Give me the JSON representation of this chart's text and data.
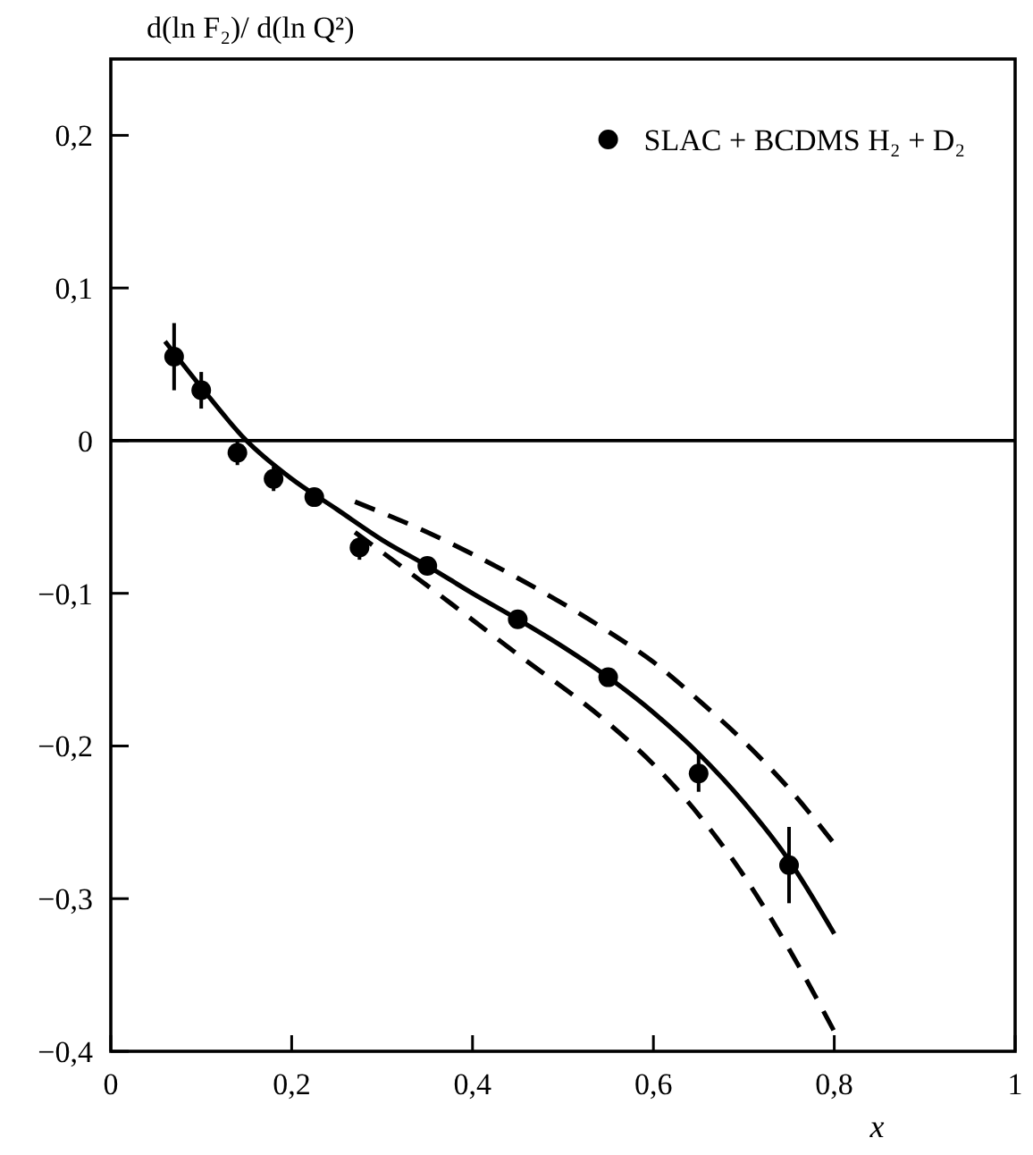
{
  "chart_data": {
    "type": "scatter",
    "ylabel": "d(ln F₂)/ d(ln Q²)",
    "xlabel": "x",
    "xlim": [
      0,
      1
    ],
    "ylim": [
      -0.4,
      0.25
    ],
    "xticks": [
      0,
      {
        "value": 0.2,
        "label": "0,2"
      },
      {
        "value": 0.4,
        "label": "0,4"
      },
      {
        "value": 0.6,
        "label": "0,6"
      },
      {
        "value": 0.8,
        "label": "0,8"
      },
      1
    ],
    "yticks": [
      {
        "value": -0.4,
        "label": "−0,4"
      },
      {
        "value": -0.3,
        "label": "−0,3"
      },
      {
        "value": -0.2,
        "label": "−0,2"
      },
      {
        "value": -0.1,
        "label": "−0,1"
      },
      0,
      {
        "value": 0.1,
        "label": "0,1"
      },
      {
        "value": 0.2,
        "label": "0,2"
      }
    ],
    "grid": false,
    "legend": "top right",
    "marker": "circle",
    "ref_lines": [
      {
        "axis": "y",
        "value": 0,
        "color": "#000000"
      }
    ],
    "series": [
      {
        "name": "SLAC + BCDMS H₂ + D₂",
        "color": "#000000",
        "x": [
          0.07,
          0.1,
          0.14,
          0.18,
          0.225,
          0.275,
          0.35,
          0.45,
          0.55,
          0.65,
          0.75
        ],
        "values": [
          0.055,
          0.033,
          -0.008,
          -0.025,
          -0.037,
          -0.07,
          -0.082,
          -0.117,
          -0.155,
          -0.218,
          -0.278
        ],
        "errors": [
          0.022,
          0.012,
          0.008,
          0.008,
          0.006,
          0.008,
          0.005,
          0.005,
          0.005,
          0.012,
          0.025
        ]
      },
      {
        "type": "line",
        "color": "#000000",
        "line_style": "solid",
        "marker": "none",
        "x": [
          0.06,
          0.1,
          0.15,
          0.2,
          0.25,
          0.3,
          0.35,
          0.4,
          0.45,
          0.5,
          0.55,
          0.6,
          0.65,
          0.7,
          0.75,
          0.8
        ],
        "values": [
          0.065,
          0.035,
          0,
          -0.025,
          -0.045,
          -0.065,
          -0.082,
          -0.1,
          -0.117,
          -0.135,
          -0.155,
          -0.178,
          -0.205,
          -0.237,
          -0.275,
          -0.323
        ]
      },
      {
        "type": "line",
        "color": "#000000",
        "line_style": "dashed",
        "marker": "none",
        "x": [
          0.27,
          0.35,
          0.45,
          0.55,
          0.6,
          0.65,
          0.7,
          0.75,
          0.8
        ],
        "values": [
          -0.04,
          -0.06,
          -0.09,
          -0.125,
          -0.145,
          -0.17,
          -0.197,
          -0.228,
          -0.264
        ]
      },
      {
        "type": "line",
        "color": "#000000",
        "line_style": "dashed",
        "marker": "none",
        "x": [
          0.27,
          0.35,
          0.45,
          0.55,
          0.6,
          0.65,
          0.7,
          0.75,
          0.8
        ],
        "values": [
          -0.06,
          -0.095,
          -0.14,
          -0.185,
          -0.212,
          -0.245,
          -0.285,
          -0.333,
          -0.387
        ]
      }
    ]
  }
}
